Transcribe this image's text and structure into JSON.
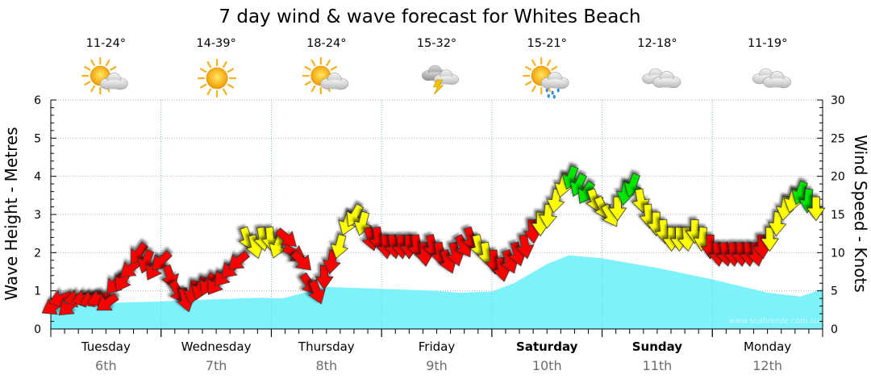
{
  "chart_data": {
    "type": "line",
    "title": "7 day wind & wave forecast for Whites Beach",
    "ylabel_left": "Wave Height - Metres",
    "ylabel_right": "Wind Speed - Knots",
    "ylim_left": [
      0,
      6
    ],
    "ylim_right": [
      0,
      30
    ],
    "yticks_left": [
      "0",
      "1",
      "2",
      "3",
      "4",
      "5",
      "6"
    ],
    "yticks_right": [
      "0",
      "5",
      "10",
      "15",
      "20",
      "25",
      "30"
    ],
    "grid": true,
    "credit": "www.seabreeze.com.au",
    "days": [
      {
        "name": "Tuesday",
        "date": "6th",
        "bold": false,
        "temp": "11-24°",
        "weather": "partly-cloudy-icon"
      },
      {
        "name": "Wednesday",
        "date": "7th",
        "bold": false,
        "temp": "14-39°",
        "weather": "sunny-icon"
      },
      {
        "name": "Thursday",
        "date": "8th",
        "bold": false,
        "temp": "18-24°",
        "weather": "partly-cloudy-icon"
      },
      {
        "name": "Friday",
        "date": "9th",
        "bold": false,
        "temp": "15-32°",
        "weather": "storm-icon"
      },
      {
        "name": "Saturday",
        "date": "10th",
        "bold": true,
        "temp": "15-21°",
        "weather": "showers-icon"
      },
      {
        "name": "Sunday",
        "date": "11th",
        "bold": true,
        "temp": "12-18°",
        "weather": "cloudy-icon"
      },
      {
        "name": "Monday",
        "date": "12th",
        "bold": false,
        "temp": "11-19°",
        "weather": "cloudy-icon"
      }
    ],
    "series": [
      {
        "name": "Wave Height",
        "units": "m",
        "color": "#7df2fa",
        "x_days": [
          0,
          0.5,
          1,
          1.5,
          1.9,
          2.1,
          2.3,
          2.5,
          3,
          3.5,
          3.7,
          4,
          4.2,
          4.5,
          4.7,
          5,
          5.5,
          6,
          6.5,
          6.8,
          7
        ],
        "values": [
          0.55,
          0.68,
          0.72,
          0.78,
          0.82,
          0.8,
          0.95,
          1.1,
          1.05,
          1.0,
          0.95,
          0.98,
          1.2,
          1.7,
          1.93,
          1.85,
          1.6,
          1.3,
          0.95,
          0.85,
          1.05
        ]
      },
      {
        "name": "Wind Speed",
        "units": "knots",
        "colors": {
          "red": "#ff0000",
          "yellow": "#ffff00",
          "green": "#00e600"
        },
        "x_days": [
          0.03,
          0.1,
          0.17,
          0.24,
          0.31,
          0.38,
          0.45,
          0.52,
          0.59,
          0.66,
          0.73,
          0.8,
          0.87,
          0.94,
          1.01,
          1.08,
          1.15,
          1.22,
          1.29,
          1.36,
          1.43,
          1.5,
          1.57,
          1.64,
          1.71,
          1.78,
          1.85,
          1.92,
          1.99,
          2.06,
          2.13,
          2.2,
          2.27,
          2.34,
          2.41,
          2.48,
          2.55,
          2.62,
          2.69,
          2.76,
          2.83,
          2.9,
          2.97,
          3.04,
          3.11,
          3.18,
          3.25,
          3.32,
          3.39,
          3.46,
          3.53,
          3.6,
          3.67,
          3.74,
          3.81,
          3.88,
          3.95,
          4.02,
          4.09,
          4.16,
          4.23,
          4.3,
          4.37,
          4.44,
          4.51,
          4.58,
          4.65,
          4.72,
          4.79,
          4.86,
          4.93,
          5.0,
          5.07,
          5.14,
          5.21,
          5.28,
          5.35,
          5.42,
          5.49,
          5.56,
          5.63,
          5.7,
          5.77,
          5.84,
          5.91,
          5.98,
          6.05,
          6.12,
          6.19,
          6.26,
          6.33,
          6.4,
          6.45,
          6.52,
          6.59,
          6.66,
          6.73,
          6.8,
          6.87,
          6.94
        ],
        "values": [
          3,
          4,
          3,
          4,
          4,
          4,
          4,
          3.5,
          6,
          6.5,
          8,
          10,
          9,
          8,
          9,
          7,
          5,
          4,
          5,
          5.5,
          6,
          6,
          7,
          8,
          9,
          12,
          11,
          12,
          12,
          11,
          12,
          10,
          9,
          6,
          5,
          7,
          9,
          11,
          14,
          15,
          14,
          12,
          12,
          11,
          11,
          11,
          11,
          11,
          10,
          11,
          10,
          9,
          10,
          11,
          12,
          11,
          10,
          9,
          8,
          9,
          10,
          11,
          13,
          14,
          15,
          17,
          19,
          20,
          19,
          18,
          17,
          16,
          15,
          16,
          18,
          19,
          17,
          15,
          14,
          13,
          12,
          12,
          12,
          13,
          12,
          11,
          10,
          10,
          10,
          10,
          10,
          10,
          11,
          12,
          14,
          16,
          17,
          18,
          17,
          16
        ],
        "color_keys": [
          "red",
          "red",
          "red",
          "red",
          "red",
          "red",
          "red",
          "red",
          "red",
          "red",
          "red",
          "red",
          "red",
          "red",
          "red",
          "red",
          "red",
          "red",
          "red",
          "red",
          "red",
          "red",
          "red",
          "red",
          "red",
          "yellow",
          "yellow",
          "yellow",
          "yellow",
          "yellow",
          "red",
          "red",
          "red",
          "red",
          "red",
          "red",
          "red",
          "yellow",
          "yellow",
          "yellow",
          "yellow",
          "red",
          "red",
          "red",
          "red",
          "red",
          "red",
          "red",
          "red",
          "red",
          "red",
          "red",
          "red",
          "red",
          "red",
          "yellow",
          "yellow",
          "red",
          "red",
          "red",
          "red",
          "red",
          "red",
          "yellow",
          "yellow",
          "yellow",
          "yellow",
          "green",
          "green",
          "green",
          "yellow",
          "yellow",
          "yellow",
          "yellow",
          "green",
          "green",
          "yellow",
          "yellow",
          "yellow",
          "yellow",
          "yellow",
          "yellow",
          "yellow",
          "yellow",
          "yellow",
          "red",
          "red",
          "red",
          "red",
          "red",
          "red",
          "red",
          "red",
          "yellow",
          "yellow",
          "yellow",
          "yellow",
          "green",
          "green",
          "yellow"
        ],
        "directions_deg": [
          240,
          250,
          230,
          260,
          255,
          245,
          250,
          235,
          220,
          210,
          230,
          215,
          200,
          210,
          225,
          160,
          150,
          165,
          190,
          200,
          210,
          215,
          220,
          225,
          230,
          160,
          165,
          170,
          175,
          200,
          130,
          120,
          135,
          145,
          160,
          180,
          190,
          195,
          200,
          210,
          195,
          165,
          170,
          175,
          170,
          175,
          180,
          170,
          175,
          165,
          170,
          160,
          165,
          150,
          160,
          165,
          170,
          175,
          170,
          160,
          165,
          170,
          175,
          180,
          185,
          190,
          195,
          200,
          205,
          210,
          160,
          155,
          150,
          180,
          190,
          200,
          170,
          175,
          180,
          175,
          180,
          180,
          175,
          180,
          185,
          180,
          175,
          170,
          175,
          175,
          175,
          170,
          175,
          180,
          185,
          190,
          195,
          200,
          185,
          180
        ]
      }
    ]
  }
}
